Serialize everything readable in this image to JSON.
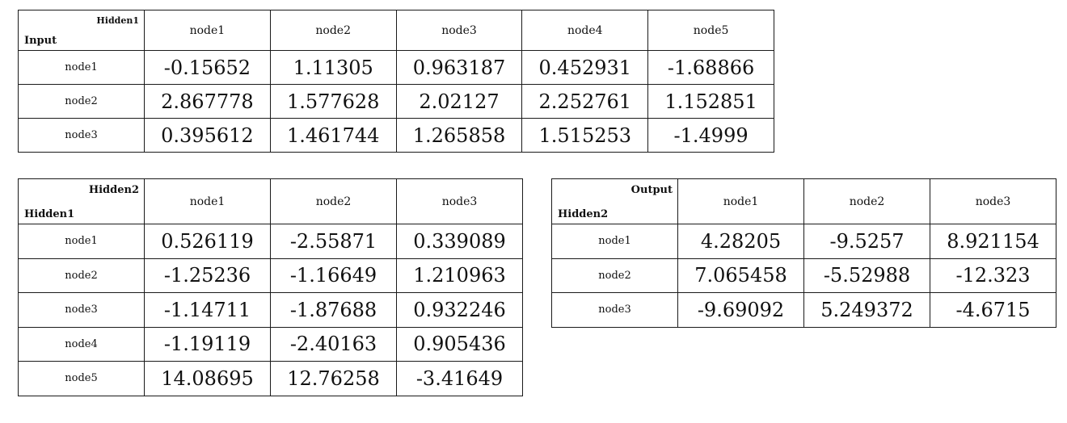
{
  "tables": [
    {
      "corner_top": "Hidden1",
      "corner_bottom": "Input",
      "columns": [
        "node1",
        "node2",
        "node3",
        "node4",
        "node5"
      ],
      "rows": [
        {
          "label": "node1",
          "values": [
            "-0.15652",
            "1.11305",
            "0.963187",
            "0.452931",
            "-1.68866"
          ]
        },
        {
          "label": "node2",
          "values": [
            "2.867778",
            "1.577628",
            "2.02127",
            "2.252761",
            "1.152851"
          ]
        },
        {
          "label": "node3",
          "values": [
            "0.395612",
            "1.461744",
            "1.265858",
            "1.515253",
            "-1.4999"
          ]
        }
      ]
    },
    {
      "corner_top": "Hidden2",
      "corner_bottom": "Hidden1",
      "columns": [
        "node1",
        "node2",
        "node3"
      ],
      "rows": [
        {
          "label": "node1",
          "values": [
            "0.526119",
            "-2.55871",
            "0.339089"
          ]
        },
        {
          "label": "node2",
          "values": [
            "-1.25236",
            "-1.16649",
            "1.210963"
          ]
        },
        {
          "label": "node3",
          "values": [
            "-1.14711",
            "-1.87688",
            "0.932246"
          ]
        },
        {
          "label": "node4",
          "values": [
            "-1.19119",
            "-2.40163",
            "0.905436"
          ]
        },
        {
          "label": "node5",
          "values": [
            "14.08695",
            "12.76258",
            "-3.41649"
          ]
        }
      ]
    },
    {
      "corner_top": "Output",
      "corner_bottom": "Hidden2",
      "columns": [
        "node1",
        "node2",
        "node3"
      ],
      "rows": [
        {
          "label": "node1",
          "values": [
            "4.28205",
            "-9.5257",
            "8.921154"
          ]
        },
        {
          "label": "node2",
          "values": [
            "7.065458",
            "-5.52988",
            "-12.323"
          ]
        },
        {
          "label": "node3",
          "values": [
            "-9.69092",
            "5.249372",
            "-4.6715"
          ]
        }
      ]
    }
  ]
}
